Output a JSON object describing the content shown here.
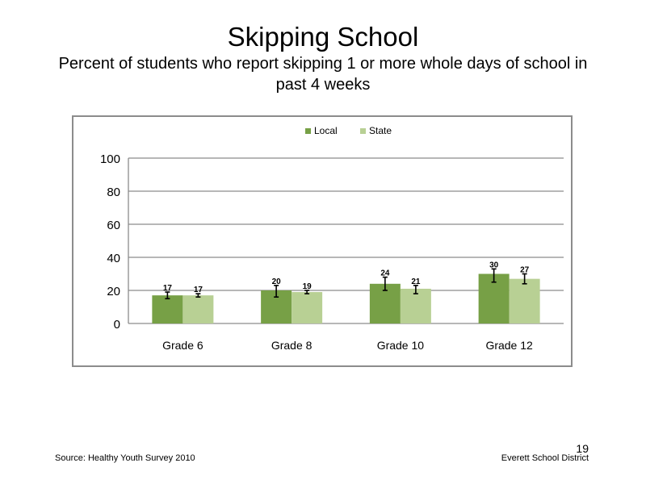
{
  "slide": {
    "title": "Skipping School",
    "subtitle": "Percent of students who report skipping 1 or more whole days of school in past 4 weeks",
    "source": "Source: Healthy Youth Survey 2010",
    "district": "Everett School District",
    "page_number": "19"
  },
  "colors": {
    "local": "#77a046",
    "state": "#b8d094",
    "grid": "#8c8c8c"
  },
  "chart_data": {
    "type": "bar",
    "categories": [
      "Grade 6",
      "Grade 8",
      "Grade 10",
      "Grade 12"
    ],
    "series": [
      {
        "name": "Local",
        "values": [
          17,
          20,
          24,
          30
        ],
        "error_low": [
          15,
          16,
          20,
          25
        ],
        "error_high": [
          19,
          23,
          28,
          33
        ]
      },
      {
        "name": "State",
        "values": [
          17,
          19,
          21,
          27
        ],
        "error_low": [
          16,
          18,
          18,
          24
        ],
        "error_high": [
          18,
          20,
          23,
          30
        ]
      }
    ],
    "title": "",
    "xlabel": "",
    "ylabel": "",
    "ylim": [
      0,
      100
    ],
    "yticks": [
      0,
      20,
      40,
      60,
      80,
      100
    ],
    "grid": true,
    "legend": "top"
  }
}
